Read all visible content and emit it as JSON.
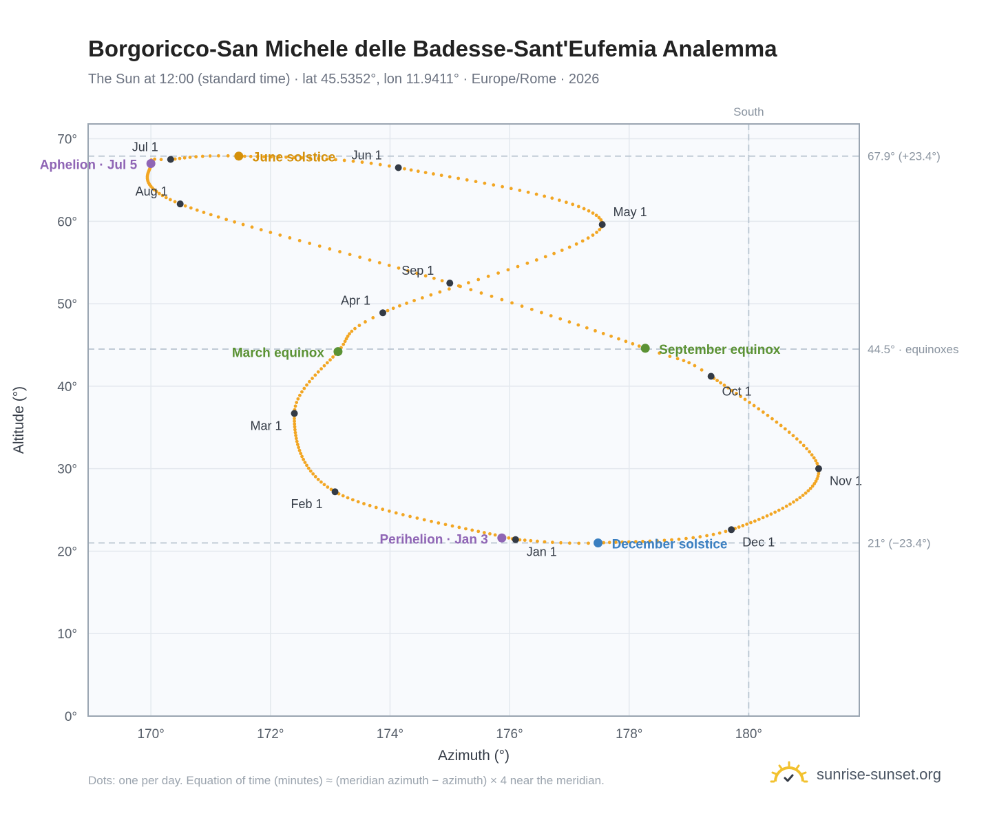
{
  "title": "Borgoricco-San Michele delle Badesse-Sant'Eufemia Analemma",
  "subtitle": "The Sun at 12:00 (standard time) · lat 45.5352°, lon 11.9411° · Europe/Rome · 2026",
  "footnote": "Dots: one per day. Equation of time (minutes) ≈ (meridian azimuth − azimuth) × 4 near the meridian.",
  "brand": {
    "name": "sunrise-sunset.org",
    "icon": "sun-logo-icon"
  },
  "colors": {
    "curve": "#f2a623",
    "month_marker": "#333a45",
    "solstice_june": "#d4900a",
    "solstice_december": "#3a7fc1",
    "equinox": "#5b9234",
    "aphelion_perihelion": "#8f65b5",
    "reference_line": "#b8c4d0",
    "plot_background": "#f8fafd",
    "grid": "#e3e8ee",
    "frame": "#9aa5b1"
  },
  "chart_data": {
    "type": "scatter",
    "xlabel": "Azimuth (°)",
    "ylabel": "Altitude (°)",
    "xlim": [
      168.95,
      181.85
    ],
    "ylim": [
      0,
      71.8
    ],
    "xticks": [
      170,
      172,
      174,
      176,
      178,
      180
    ],
    "yticks": [
      0,
      10,
      20,
      30,
      40,
      50,
      60,
      70
    ],
    "x_tick_labels": [
      "170°",
      "172°",
      "174°",
      "176°",
      "178°",
      "180°"
    ],
    "y_tick_labels": [
      "0°",
      "10°",
      "20°",
      "30°",
      "40°",
      "50°",
      "60°",
      "70°"
    ],
    "grid": true,
    "curve_points_per_year": 365,
    "curve_path": [
      {
        "doy": 0,
        "x": 176.1,
        "y": 21.4
      },
      {
        "doy": 31,
        "x": 173.08,
        "y": 27.2
      },
      {
        "doy": 59,
        "x": 172.4,
        "y": 36.7
      },
      {
        "doy": 78,
        "x": 173.13,
        "y": 44.2
      },
      {
        "doy": 90,
        "x": 173.88,
        "y": 48.9
      },
      {
        "doy": 120,
        "x": 177.55,
        "y": 59.6
      },
      {
        "doy": 151,
        "x": 174.14,
        "y": 66.5
      },
      {
        "doy": 171,
        "x": 171.47,
        "y": 67.9
      },
      {
        "doy": 181,
        "x": 170.33,
        "y": 67.5
      },
      {
        "doy": 185,
        "x": 170.0,
        "y": 67.0
      },
      {
        "doy": 212,
        "x": 170.49,
        "y": 62.1
      },
      {
        "doy": 243,
        "x": 175.0,
        "y": 52.5
      },
      {
        "doy": 265,
        "x": 178.27,
        "y": 44.6
      },
      {
        "doy": 273,
        "x": 179.37,
        "y": 41.2
      },
      {
        "doy": 304,
        "x": 181.17,
        "y": 30.0
      },
      {
        "doy": 334,
        "x": 179.71,
        "y": 22.6
      },
      {
        "doy": 354,
        "x": 177.48,
        "y": 21.0
      },
      {
        "doy": 365,
        "x": 176.1,
        "y": 21.4
      }
    ],
    "month_markers": [
      {
        "label": "Jan 1",
        "x": 176.1,
        "y": 21.4
      },
      {
        "label": "Feb 1",
        "x": 173.08,
        "y": 27.2
      },
      {
        "label": "Mar 1",
        "x": 172.4,
        "y": 36.7
      },
      {
        "label": "Apr 1",
        "x": 173.88,
        "y": 48.9
      },
      {
        "label": "May 1",
        "x": 177.55,
        "y": 59.6
      },
      {
        "label": "Jun 1",
        "x": 174.14,
        "y": 66.5
      },
      {
        "label": "Jul 1",
        "x": 170.33,
        "y": 67.5
      },
      {
        "label": "Aug 1",
        "x": 170.49,
        "y": 62.1
      },
      {
        "label": "Sep 1",
        "x": 175.0,
        "y": 52.5
      },
      {
        "label": "Oct 1",
        "x": 179.37,
        "y": 41.2
      },
      {
        "label": "Nov 1",
        "x": 181.17,
        "y": 30.0
      },
      {
        "label": "Dec 1",
        "x": 179.71,
        "y": 22.6
      }
    ],
    "events": [
      {
        "label": "June solstice",
        "x": 171.47,
        "y": 67.9,
        "color_key": "solstice_june"
      },
      {
        "label": "December solstice",
        "x": 177.48,
        "y": 21.0,
        "color_key": "solstice_december"
      },
      {
        "label": "March equinox",
        "x": 173.13,
        "y": 44.2,
        "color_key": "equinox"
      },
      {
        "label": "September equinox",
        "x": 178.27,
        "y": 44.6,
        "color_key": "equinox"
      },
      {
        "label": "Aphelion · Jul 5",
        "x": 170.0,
        "y": 67.0,
        "color_key": "aphelion_perihelion"
      },
      {
        "label": "Perihelion · Jan 3",
        "x": 175.87,
        "y": 21.6,
        "color_key": "aphelion_perihelion"
      }
    ],
    "reference_lines": [
      {
        "axis": "y",
        "value": 67.9,
        "label": "67.9° (+23.4°)"
      },
      {
        "axis": "y",
        "value": 44.5,
        "label": "44.5° · equinoxes"
      },
      {
        "axis": "y",
        "value": 21.0,
        "label": "21° (−23.4°)"
      },
      {
        "axis": "x",
        "value": 180,
        "label": "South"
      }
    ]
  }
}
